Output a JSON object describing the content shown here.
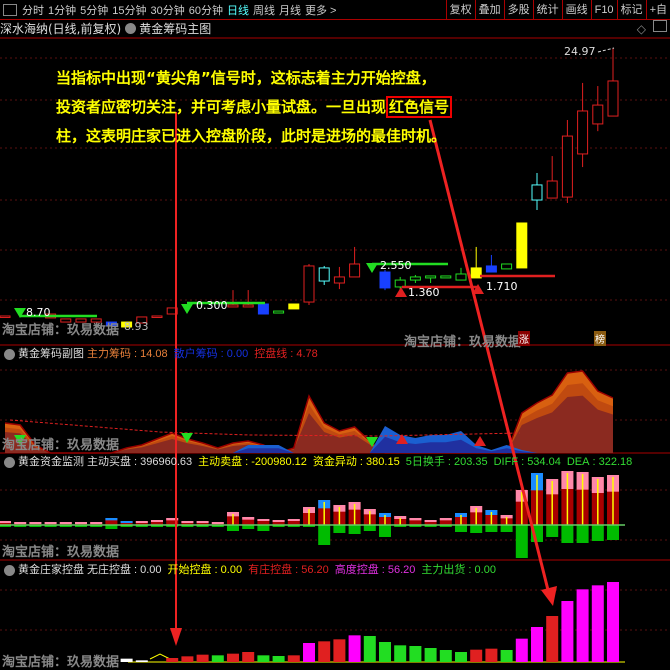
{
  "toolbar": {
    "periods": [
      "分时",
      "1分钟",
      "5分钟",
      "15分钟",
      "30分钟",
      "60分钟",
      "日线",
      "周线",
      "月线",
      "更多 >"
    ],
    "active": "日线",
    "actions": [
      "复权",
      "叠加",
      "多股",
      "统计",
      "画线",
      "F10",
      "标记",
      "+自"
    ]
  },
  "title": {
    "stock": "深水海纳(日线,前复权)",
    "indicator": "黄金筹码主图"
  },
  "annotation": {
    "line1": "当指标中出现“黄尖角”信号时，这标志着主力开始控盘，",
    "line2a": "投资者应密切关注，并可考虑小量试盘。一旦出现",
    "line2b": "红色信号",
    "line3": "柱，这表明庄家已进入控盘阶段，此时是进场的最佳时机。"
  },
  "main": {
    "high_label": "24.97",
    "price_labels": [
      "8.70",
      "0.300",
      "2.550",
      "1.360",
      "1.710"
    ],
    "side_value": "8.93",
    "tags": [
      "涨",
      "榜"
    ],
    "candles": [
      [
        0,
        8.63,
        8.63,
        8.63,
        8.63,
        "red"
      ],
      [
        3,
        8.51,
        8.75,
        8.75,
        8.51,
        "red"
      ],
      [
        4,
        8.26,
        8.45,
        8.45,
        8.26,
        "red"
      ],
      [
        5,
        8.26,
        8.45,
        8.45,
        8.26,
        "red"
      ],
      [
        6,
        8.26,
        8.45,
        8.45,
        8.26,
        "red"
      ],
      [
        7,
        8.26,
        8.02,
        8.26,
        8.02,
        "blue"
      ],
      [
        8,
        8.26,
        7.96,
        8.26,
        7.96,
        "yellow"
      ],
      [
        9,
        8.2,
        8.57,
        8.57,
        8.2,
        "red"
      ],
      [
        10,
        8.63,
        8.63,
        8.63,
        8.63,
        "red"
      ],
      [
        11,
        8.75,
        9.12,
        9.12,
        8.75,
        "red"
      ],
      [
        15,
        9.18,
        9.3,
        10.21,
        9.18,
        "red"
      ],
      [
        16,
        9.18,
        9.3,
        10.21,
        9.18,
        "red"
      ],
      [
        17,
        9.36,
        8.75,
        9.36,
        8.75,
        "blue"
      ],
      [
        18,
        8.93,
        8.81,
        8.93,
        8.81,
        "green"
      ],
      [
        19,
        9.06,
        9.36,
        9.36,
        9.06,
        "yellow"
      ],
      [
        20,
        9.48,
        11.68,
        11.8,
        9.3,
        "red"
      ],
      [
        21,
        11.56,
        10.76,
        11.68,
        10.52,
        "cyan"
      ],
      [
        22,
        10.64,
        11.01,
        11.62,
        10.27,
        "red"
      ],
      [
        23,
        11.01,
        11.8,
        12.84,
        11.01,
        "red"
      ],
      [
        25,
        11.31,
        10.34,
        11.43,
        10.21,
        "blue"
      ],
      [
        26,
        10.4,
        10.82,
        11.01,
        10.21,
        "green"
      ],
      [
        27,
        10.82,
        11.01,
        11.13,
        10.64,
        "green"
      ],
      [
        28,
        11.07,
        10.95,
        11.07,
        10.64,
        "green"
      ],
      [
        29,
        11.07,
        10.95,
        11.07,
        10.95,
        "green"
      ],
      [
        30,
        10.82,
        11.19,
        11.56,
        10.82,
        "green"
      ],
      [
        31,
        10.95,
        11.56,
        12.84,
        10.95,
        "yellow"
      ],
      [
        32,
        11.31,
        11.68,
        12.35,
        11.31,
        "blue"
      ],
      [
        33,
        11.5,
        11.8,
        11.8,
        11.5,
        "green"
      ],
      [
        34,
        11.56,
        14.3,
        14.3,
        11.56,
        "yellow"
      ],
      [
        35,
        16.62,
        15.7,
        17.35,
        15.09,
        "cyan"
      ],
      [
        36,
        15.82,
        16.86,
        18.38,
        15.82,
        "red"
      ],
      [
        37,
        15.88,
        19.6,
        20.58,
        15.52,
        "red"
      ],
      [
        38,
        18.51,
        21.13,
        22.84,
        17.71,
        "red"
      ],
      [
        39,
        20.34,
        21.49,
        22.65,
        19.9,
        "red"
      ],
      [
        40,
        20.82,
        22.96,
        24.97,
        20.82,
        "red"
      ]
    ]
  },
  "sub1": {
    "name": "黄金筹码副图",
    "items": [
      {
        "label": "主力筹码",
        "value": "14.08",
        "color": "#e8803a"
      },
      {
        "label": "散户筹码",
        "value": "0.00",
        "color": "#1530e0"
      },
      {
        "label": "控盘线",
        "value": "4.78",
        "color": "#e02020"
      }
    ],
    "brown": [
      30,
      28,
      8,
      0,
      0,
      0,
      0,
      0,
      5,
      8,
      14,
      20,
      14,
      10,
      5,
      10,
      12,
      8,
      0,
      5,
      57,
      30,
      22,
      26,
      12,
      0,
      0,
      0,
      0,
      0,
      0,
      0,
      0,
      0,
      40,
      50,
      58,
      80,
      82,
      62,
      55
    ],
    "blue": [
      0,
      0,
      0,
      0,
      0,
      0,
      0,
      0,
      0,
      0,
      0,
      0,
      0,
      0,
      0,
      0,
      8,
      8,
      8,
      0,
      0,
      0,
      0,
      0,
      0,
      27,
      18,
      15,
      18,
      18,
      22,
      8,
      3,
      8,
      3,
      0,
      0,
      0,
      0,
      0,
      0
    ]
  },
  "sub2": {
    "name": "黄金资金监测",
    "items": [
      {
        "label": "主动买盘",
        "value": "396960.63",
        "color": "#ddd"
      },
      {
        "label": "主动卖盘",
        "value": "-200980.12",
        "color": "#ff0"
      },
      {
        "label": "资金异动",
        "value": "380.15",
        "color": "#ff0"
      },
      {
        "label": "5日换手",
        "value": "203.35",
        "color": "#3d3"
      },
      {
        "label": "DIFF",
        "value": "534.04",
        "color": "#3d3"
      },
      {
        "label": "DEA",
        "value": "322.18",
        "color": "#3d3"
      }
    ],
    "pos": [
      4,
      3,
      3,
      3,
      3,
      3,
      3,
      7,
      4,
      4,
      5,
      7,
      4,
      4,
      3,
      13,
      8,
      6,
      5,
      6,
      18,
      25,
      20,
      23,
      16,
      12,
      9,
      7,
      5,
      7,
      12,
      19,
      15,
      10,
      35,
      52,
      46,
      54,
      53,
      48,
      50
    ],
    "neg": [
      2,
      2,
      2,
      2,
      2,
      2,
      2,
      4,
      2,
      2,
      2,
      2,
      2,
      2,
      2,
      6,
      4,
      6,
      2,
      2,
      2,
      20,
      8,
      9,
      6,
      12,
      2,
      2,
      2,
      2,
      7,
      8,
      7,
      7,
      33,
      17,
      12,
      18,
      18,
      16,
      15
    ],
    "blue_caps": [
      7,
      8,
      21,
      25,
      30,
      32,
      35
    ]
  },
  "sub3": {
    "name": "黄金庄家控盘",
    "items": [
      {
        "label": "无庄控盘",
        "value": "0.00",
        "color": "#ddd"
      },
      {
        "label": "开始控盘",
        "value": "0.00",
        "color": "#ff0"
      },
      {
        "label": "有庄控盘",
        "value": "56.20",
        "color": "#e02020"
      },
      {
        "label": "高度控盘",
        "value": "56.20",
        "color": "#e030e0"
      },
      {
        "label": "主力出货",
        "value": "0.00",
        "color": "#3d3"
      }
    ],
    "bars": [
      [
        8,
        10,
        "white"
      ],
      [
        9,
        5,
        "white"
      ],
      [
        11,
        12,
        "red"
      ],
      [
        12,
        17,
        "red"
      ],
      [
        13,
        22,
        "red"
      ],
      [
        14,
        20,
        "green"
      ],
      [
        15,
        25,
        "red"
      ],
      [
        16,
        30,
        "red"
      ],
      [
        17,
        20,
        "green"
      ],
      [
        18,
        18,
        "green"
      ],
      [
        19,
        20,
        "red"
      ],
      [
        20,
        57,
        "magenta"
      ],
      [
        21,
        62,
        "red"
      ],
      [
        22,
        68,
        "red"
      ],
      [
        23,
        80,
        "magenta"
      ],
      [
        24,
        78,
        "green"
      ],
      [
        25,
        60,
        "green"
      ],
      [
        26,
        50,
        "green"
      ],
      [
        27,
        48,
        "green"
      ],
      [
        28,
        42,
        "green"
      ],
      [
        29,
        36,
        "green"
      ],
      [
        30,
        30,
        "green"
      ],
      [
        31,
        37,
        "red"
      ],
      [
        32,
        40,
        "red"
      ],
      [
        33,
        36,
        "green"
      ],
      [
        34,
        70,
        "magenta"
      ],
      [
        35,
        105,
        "magenta"
      ],
      [
        36,
        138,
        "red"
      ],
      [
        37,
        183,
        "magenta"
      ],
      [
        38,
        218,
        "magenta"
      ],
      [
        39,
        230,
        "magenta"
      ],
      [
        40,
        240,
        "magenta"
      ]
    ]
  },
  "watermark": "淘宝店铺：玖易数据",
  "colors": {
    "red": "#e02020",
    "blue": "#1840ff",
    "cyan": "#5ff",
    "green": "#2d2",
    "yellow": "#ff0",
    "magenta": "#f0f",
    "white": "#fff",
    "brown": "#8b2a20",
    "orange": "#d86010",
    "bluearea": "#1a5fd0"
  }
}
